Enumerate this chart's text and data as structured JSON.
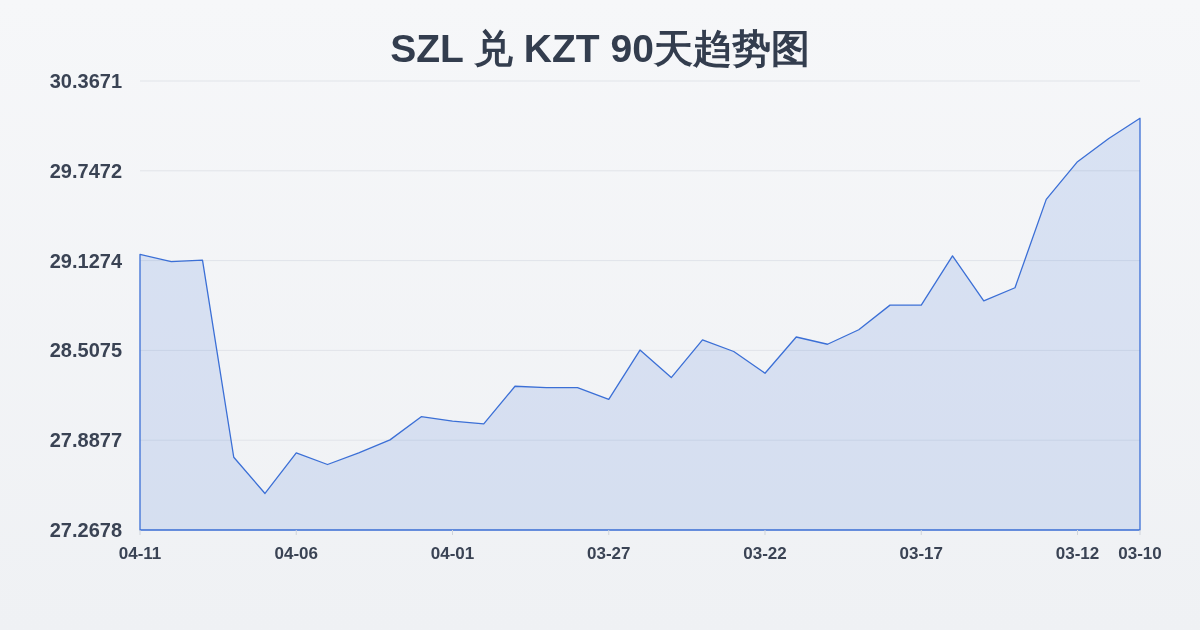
{
  "chart_data": {
    "type": "area",
    "title": "SZL 兑 KZT 90天趋势图",
    "categories": [
      "04-11",
      null,
      null,
      null,
      null,
      "04-06",
      null,
      null,
      null,
      null,
      "04-01",
      null,
      null,
      null,
      null,
      "03-27",
      null,
      null,
      null,
      null,
      "03-22",
      null,
      null,
      null,
      null,
      "03-17",
      null,
      null,
      null,
      null,
      "03-12",
      null,
      "03-10"
    ],
    "values": [
      29.17,
      29.12,
      29.13,
      27.77,
      27.52,
      27.8,
      27.72,
      27.8,
      27.89,
      28.05,
      28.02,
      28.0,
      28.26,
      28.25,
      28.25,
      28.17,
      28.51,
      28.32,
      28.58,
      28.5,
      28.35,
      28.6,
      28.55,
      28.65,
      28.82,
      28.82,
      29.16,
      28.85,
      28.94,
      29.55,
      29.81,
      29.97,
      30.11
    ],
    "color": "#3b6fd6",
    "ylim": [
      27.2678,
      30.3671
    ],
    "yticks": [
      27.2678,
      27.8877,
      28.5075,
      29.1274,
      29.7472,
      30.3671
    ],
    "grid": "y"
  }
}
